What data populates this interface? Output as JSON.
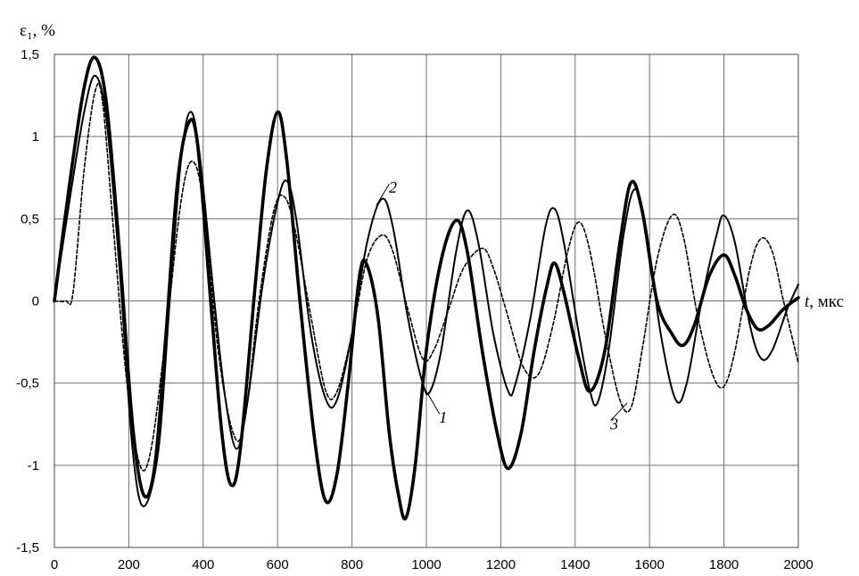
{
  "chart_data": {
    "type": "line",
    "ylabel": "ε₁, %",
    "xlabel_symbol": "t",
    "xlabel_unit": ", мкс",
    "xlim": [
      0,
      2000
    ],
    "ylim": [
      -1.5,
      1.5
    ],
    "x_ticks": [
      "0",
      "200",
      "400",
      "600",
      "800",
      "1000",
      "1200",
      "1400",
      "1600",
      "1800",
      "2000"
    ],
    "y_ticks": [
      "1,5",
      "1",
      "0,5",
      "0",
      "-0,5",
      "-1",
      "-1,5"
    ],
    "grid": true,
    "series": [
      {
        "name": "1",
        "style": "thick",
        "points": [
          [
            0,
            0
          ],
          [
            40,
            0.7
          ],
          [
            80,
            1.3
          ],
          [
            110,
            1.48
          ],
          [
            140,
            1.2
          ],
          [
            175,
            0.3
          ],
          [
            210,
            -0.75
          ],
          [
            240,
            -1.18
          ],
          [
            270,
            -1.0
          ],
          [
            300,
            -0.2
          ],
          [
            330,
            0.7
          ],
          [
            360,
            1.08
          ],
          [
            385,
            0.95
          ],
          [
            420,
            0.0
          ],
          [
            450,
            -0.8
          ],
          [
            475,
            -1.12
          ],
          [
            500,
            -0.9
          ],
          [
            540,
            0.1
          ],
          [
            570,
            0.8
          ],
          [
            600,
            1.15
          ],
          [
            625,
            0.85
          ],
          [
            660,
            0.0
          ],
          [
            700,
            -0.85
          ],
          [
            730,
            -1.22
          ],
          [
            760,
            -1.05
          ],
          [
            790,
            -0.5
          ],
          [
            820,
            0.15
          ],
          [
            840,
            0.22
          ],
          [
            870,
            -0.1
          ],
          [
            900,
            -0.8
          ],
          [
            925,
            -1.18
          ],
          [
            945,
            -1.32
          ],
          [
            970,
            -1.0
          ],
          [
            1000,
            -0.3
          ],
          [
            1040,
            0.25
          ],
          [
            1080,
            0.49
          ],
          [
            1110,
            0.3
          ],
          [
            1150,
            -0.3
          ],
          [
            1190,
            -0.8
          ],
          [
            1220,
            -1.02
          ],
          [
            1255,
            -0.8
          ],
          [
            1290,
            -0.3
          ],
          [
            1325,
            0.1
          ],
          [
            1345,
            0.23
          ],
          [
            1370,
            0.05
          ],
          [
            1410,
            -0.35
          ],
          [
            1440,
            -0.55
          ],
          [
            1480,
            -0.3
          ],
          [
            1520,
            0.35
          ],
          [
            1550,
            0.72
          ],
          [
            1580,
            0.55
          ],
          [
            1620,
            0.0
          ],
          [
            1660,
            -0.2
          ],
          [
            1690,
            -0.27
          ],
          [
            1720,
            -0.15
          ],
          [
            1760,
            0.15
          ],
          [
            1800,
            0.28
          ],
          [
            1830,
            0.15
          ],
          [
            1860,
            -0.05
          ],
          [
            1890,
            -0.17
          ],
          [
            1920,
            -0.15
          ],
          [
            1960,
            -0.05
          ],
          [
            2000,
            0.02
          ]
        ]
      },
      {
        "name": "2",
        "style": "thin",
        "points": [
          [
            0,
            0
          ],
          [
            40,
            0.6
          ],
          [
            80,
            1.15
          ],
          [
            110,
            1.37
          ],
          [
            140,
            1.1
          ],
          [
            175,
            0.2
          ],
          [
            210,
            -0.9
          ],
          [
            240,
            -1.25
          ],
          [
            280,
            -0.9
          ],
          [
            310,
            0.0
          ],
          [
            340,
            0.85
          ],
          [
            365,
            1.15
          ],
          [
            390,
            0.9
          ],
          [
            430,
            0.0
          ],
          [
            460,
            -0.6
          ],
          [
            490,
            -0.9
          ],
          [
            520,
            -0.6
          ],
          [
            560,
            0.1
          ],
          [
            600,
            0.6
          ],
          [
            625,
            0.73
          ],
          [
            650,
            0.5
          ],
          [
            690,
            -0.2
          ],
          [
            730,
            -0.6
          ],
          [
            760,
            -0.6
          ],
          [
            800,
            -0.2
          ],
          [
            840,
            0.35
          ],
          [
            880,
            0.62
          ],
          [
            910,
            0.45
          ],
          [
            950,
            -0.1
          ],
          [
            990,
            -0.5
          ],
          [
            1010,
            -0.55
          ],
          [
            1040,
            -0.3
          ],
          [
            1080,
            0.3
          ],
          [
            1110,
            0.55
          ],
          [
            1140,
            0.35
          ],
          [
            1180,
            -0.2
          ],
          [
            1220,
            -0.55
          ],
          [
            1240,
            -0.5
          ],
          [
            1280,
            -0.1
          ],
          [
            1320,
            0.45
          ],
          [
            1345,
            0.56
          ],
          [
            1370,
            0.35
          ],
          [
            1410,
            -0.2
          ],
          [
            1440,
            -0.55
          ],
          [
            1460,
            -0.62
          ],
          [
            1490,
            -0.3
          ],
          [
            1530,
            0.4
          ],
          [
            1560,
            0.68
          ],
          [
            1590,
            0.45
          ],
          [
            1630,
            -0.2
          ],
          [
            1670,
            -0.6
          ],
          [
            1700,
            -0.5
          ],
          [
            1740,
            0.0
          ],
          [
            1780,
            0.4
          ],
          [
            1800,
            0.52
          ],
          [
            1830,
            0.35
          ],
          [
            1870,
            -0.15
          ],
          [
            1900,
            -0.35
          ],
          [
            1930,
            -0.3
          ],
          [
            1970,
            -0.05
          ],
          [
            2000,
            0.1
          ]
        ]
      },
      {
        "name": "3",
        "style": "dashed",
        "points": [
          [
            0,
            0
          ],
          [
            30,
            0
          ],
          [
            50,
            0.05
          ],
          [
            80,
            0.8
          ],
          [
            110,
            1.28
          ],
          [
            130,
            1.2
          ],
          [
            160,
            0.4
          ],
          [
            195,
            -0.5
          ],
          [
            230,
            -1.0
          ],
          [
            260,
            -0.9
          ],
          [
            300,
            -0.2
          ],
          [
            340,
            0.6
          ],
          [
            370,
            0.85
          ],
          [
            400,
            0.6
          ],
          [
            440,
            -0.3
          ],
          [
            480,
            -0.8
          ],
          [
            510,
            -0.75
          ],
          [
            550,
            0.0
          ],
          [
            590,
            0.55
          ],
          [
            620,
            0.63
          ],
          [
            650,
            0.4
          ],
          [
            690,
            -0.1
          ],
          [
            730,
            -0.55
          ],
          [
            760,
            -0.55
          ],
          [
            800,
            -0.2
          ],
          [
            840,
            0.25
          ],
          [
            880,
            0.4
          ],
          [
            910,
            0.3
          ],
          [
            950,
            -0.05
          ],
          [
            990,
            -0.35
          ],
          [
            1020,
            -0.3
          ],
          [
            1060,
            -0.05
          ],
          [
            1100,
            0.2
          ],
          [
            1150,
            0.32
          ],
          [
            1180,
            0.2
          ],
          [
            1220,
            -0.1
          ],
          [
            1260,
            -0.4
          ],
          [
            1300,
            -0.45
          ],
          [
            1340,
            -0.15
          ],
          [
            1380,
            0.3
          ],
          [
            1410,
            0.48
          ],
          [
            1440,
            0.3
          ],
          [
            1480,
            -0.2
          ],
          [
            1520,
            -0.6
          ],
          [
            1550,
            -0.65
          ],
          [
            1580,
            -0.3
          ],
          [
            1620,
            0.25
          ],
          [
            1660,
            0.52
          ],
          [
            1690,
            0.4
          ],
          [
            1730,
            -0.1
          ],
          [
            1770,
            -0.45
          ],
          [
            1800,
            -0.52
          ],
          [
            1830,
            -0.3
          ],
          [
            1870,
            0.2
          ],
          [
            1900,
            0.38
          ],
          [
            1930,
            0.3
          ],
          [
            1960,
            0.0
          ],
          [
            2000,
            -0.38
          ]
        ]
      }
    ],
    "annotations": [
      {
        "text": "1",
        "series": "1",
        "at": [
          1000,
          -0.55
        ],
        "label_at": [
          1045,
          -0.72
        ]
      },
      {
        "text": "2",
        "series": "2",
        "at": [
          865,
          0.58
        ],
        "label_at": [
          910,
          0.68
        ]
      },
      {
        "text": "3",
        "series": "3",
        "at": [
          1540,
          -0.62
        ],
        "label_at": [
          1505,
          -0.76
        ]
      }
    ]
  }
}
